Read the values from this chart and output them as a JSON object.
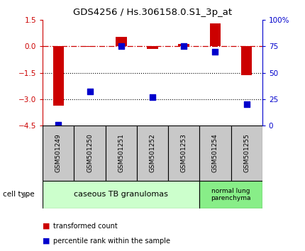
{
  "title": "GDS4256 / Hs.306158.0.S1_3p_at",
  "samples": [
    "GSM501249",
    "GSM501250",
    "GSM501251",
    "GSM501252",
    "GSM501253",
    "GSM501254",
    "GSM501255"
  ],
  "red_values": [
    -3.35,
    -0.02,
    0.55,
    -0.15,
    0.15,
    1.3,
    -1.65
  ],
  "blue_values": [
    1.0,
    32.0,
    75.0,
    27.0,
    75.0,
    70.0,
    20.0
  ],
  "ylim_left": [
    -4.5,
    1.5
  ],
  "ylim_right": [
    0,
    100
  ],
  "yticks_left": [
    1.5,
    0,
    -1.5,
    -3,
    -4.5
  ],
  "yticks_right": [
    100,
    75,
    50,
    25,
    0
  ],
  "dotted_lines": [
    -1.5,
    -3.0
  ],
  "bar_width": 0.35,
  "red_color": "#cc0000",
  "blue_color": "#0000cc",
  "cell_type_groups": [
    {
      "label": "caseous TB granulomas",
      "indices": [
        0,
        4
      ],
      "color": "#ccffcc"
    },
    {
      "label": "normal lung\nparenchyma",
      "indices": [
        5,
        6
      ],
      "color": "#88ee88"
    }
  ],
  "legend_items": [
    {
      "color": "#cc0000",
      "label": "transformed count"
    },
    {
      "color": "#0000cc",
      "label": "percentile rank within the sample"
    }
  ],
  "cell_type_label": "cell type",
  "background_color": "#ffffff",
  "plot_bg": "#ffffff",
  "sample_box_color": "#c8c8c8"
}
